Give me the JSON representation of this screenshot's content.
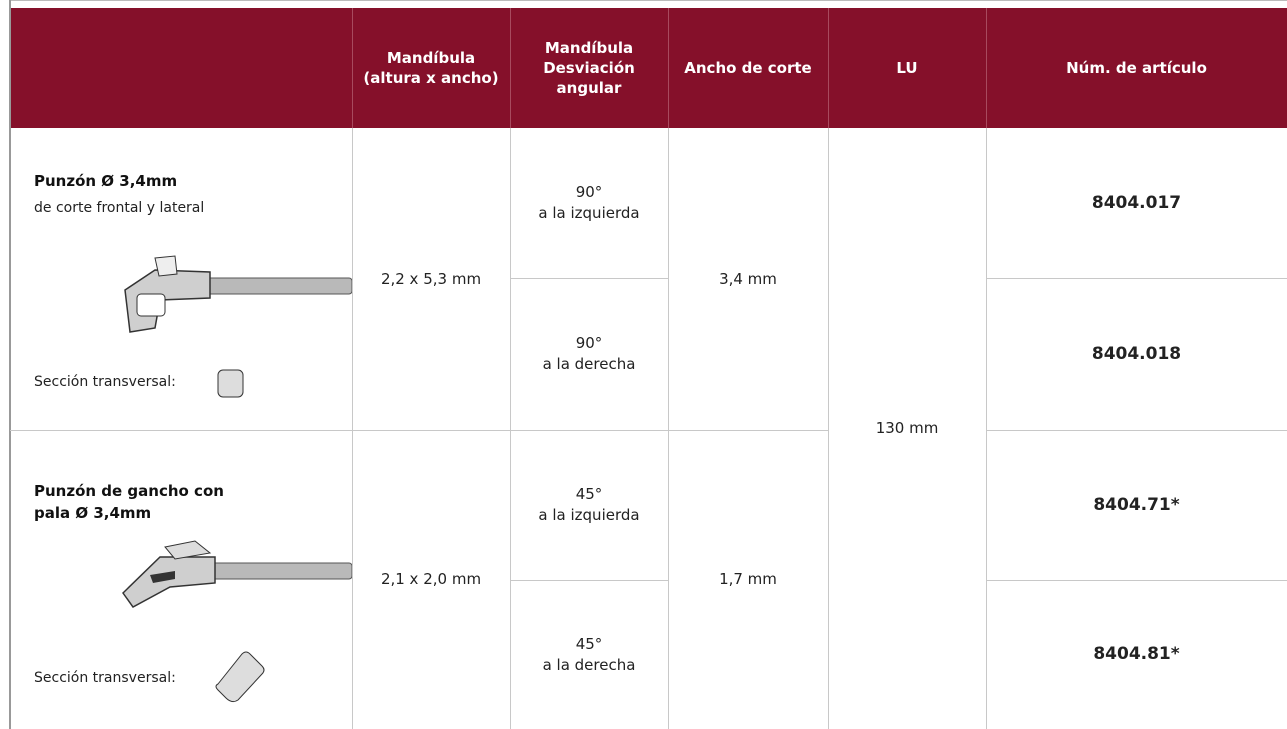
{
  "table": {
    "headers": [
      "Mandíbula (altura x ancho)",
      "Mandíbula Desviación angular",
      "Ancho de corte",
      "LU",
      "Núm. de artículo"
    ],
    "lu": "130 mm",
    "rows": [
      {
        "name": "Punzón Ø 3,4mm",
        "description": "de corte frontal y lateral",
        "cross_section": "Sección transversal:",
        "jaw": "2,2 x 5,3 mm",
        "cut_width": "3,4 mm",
        "variants": [
          {
            "angle": "90°",
            "direction": "a la izquierda",
            "article": "8404.017"
          },
          {
            "angle": "90°",
            "direction": "a la derecha",
            "article": "8404.018"
          }
        ]
      },
      {
        "name": "Punzón de gancho con pala Ø 3,4mm",
        "cross_section": "Sección transversal:",
        "jaw": "2,1 x 2,0 mm",
        "cut_width": "1,7 mm",
        "variants": [
          {
            "angle": "45°",
            "direction": "a la izquierda",
            "article": "8404.71*"
          },
          {
            "angle": "45°",
            "direction": "a la derecha",
            "article": "8404.81*"
          }
        ]
      }
    ]
  }
}
